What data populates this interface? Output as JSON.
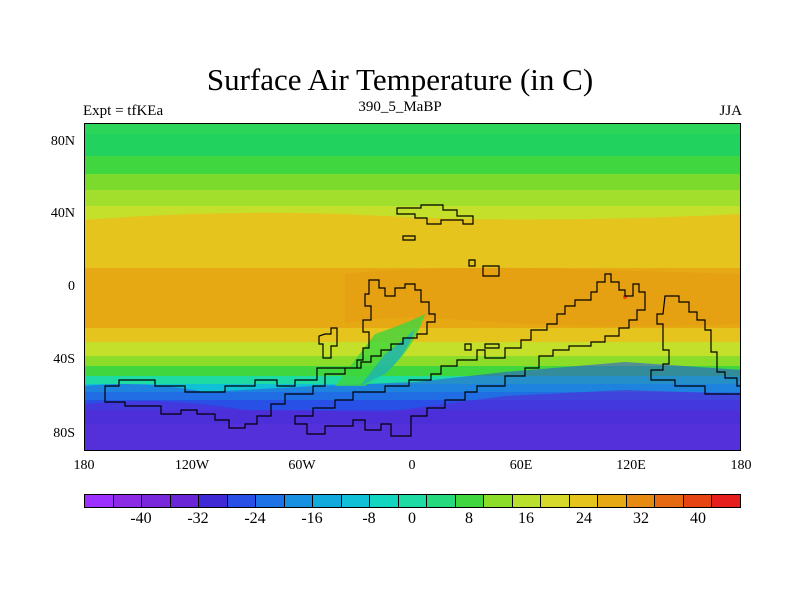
{
  "title": "Surface Air Temperature (in C)",
  "left_label": "Expt = tfKEa",
  "center_label": "390_5_MaBP",
  "right_label": "JJA",
  "y_ticks": [
    "80N",
    "40N",
    "0",
    "40S",
    "80S"
  ],
  "x_ticks": [
    "180",
    "120W",
    "60W",
    "0",
    "60E",
    "120E",
    "180"
  ],
  "colorbar": {
    "colors": [
      "#9b30ff",
      "#8b2be6",
      "#7a28db",
      "#6a25d6",
      "#3f2ad6",
      "#2950e6",
      "#1e72e8",
      "#1790e2",
      "#12a9dc",
      "#0fc0d6",
      "#12d6bf",
      "#1edba4",
      "#25d97f",
      "#3fd63f",
      "#8cdc2a",
      "#b8e02d",
      "#d6d82a",
      "#e6c41e",
      "#e6a914",
      "#e68a12",
      "#e66a12",
      "#e64412",
      "#e61e1e"
    ],
    "labels": [
      "-40",
      "-32",
      "-24",
      "-16",
      "-8",
      "0",
      "8",
      "16",
      "24",
      "32",
      "40"
    ]
  }
}
